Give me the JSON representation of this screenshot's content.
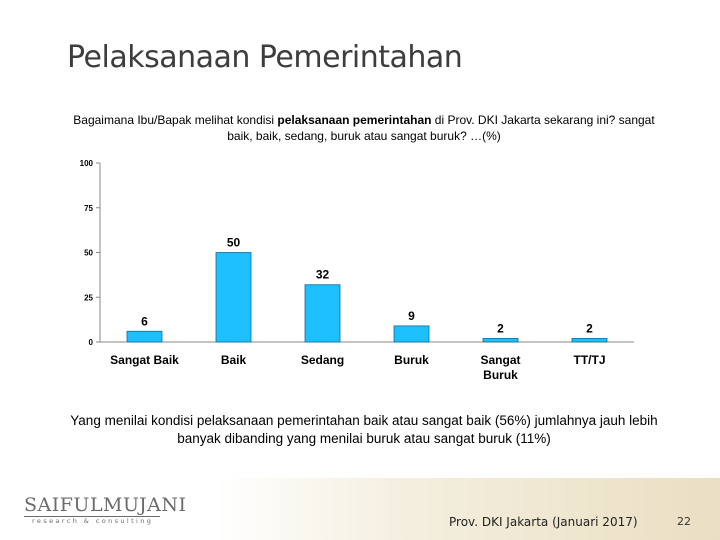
{
  "slide": {
    "title": "Pelaksanaan Pemerintahan",
    "question_part1": "Bagaimana Ibu/Bapak melihat kondisi ",
    "question_bold": "pelaksanaan pemerintahan",
    "question_part2": " di Prov. DKI Jakarta sekarang ini? sangat baik, baik, sedang, buruk atau sangat buruk? …(%)",
    "conclusion": "Yang menilai kondisi pelaksanaan pemerintahan baik atau sangat baik (56%) jumlahnya jauh lebih banyak dibanding yang menilai buruk atau sangat buruk (11%)"
  },
  "footer": {
    "logo_main": "SAIFULMUJANI",
    "logo_sub": "research & consulting",
    "source": "Prov. DKI Jakarta (Januari 2017)",
    "page_number": "22"
  },
  "chart_data": {
    "type": "bar",
    "categories": [
      "Sangat Baik",
      "Baik",
      "Sedang",
      "Buruk",
      "Sangat Buruk",
      "TT/TJ"
    ],
    "values": [
      6,
      50,
      32,
      9,
      2,
      2
    ],
    "ylim": [
      0,
      100
    ],
    "yticks": [
      0,
      25,
      50,
      75,
      100
    ],
    "grid": false,
    "bar_color": "#1ebfff",
    "bar_border": "#0d6f99"
  }
}
